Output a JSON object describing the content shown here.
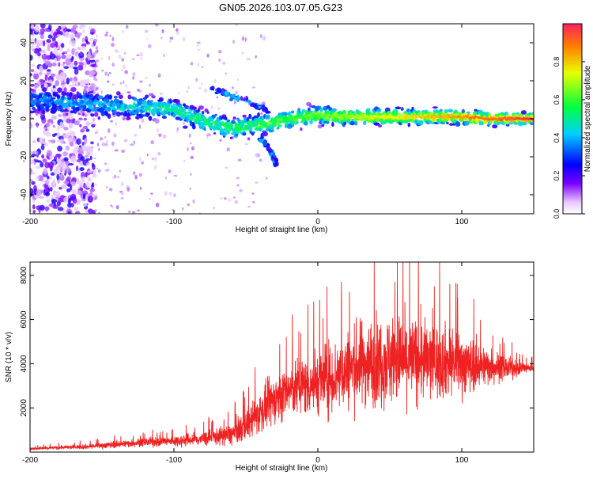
{
  "title": "GN05.2026.103.07.05.G23",
  "colors": {
    "snr_line": "#ee2222",
    "colormap": [
      "#ffffff",
      "#e8c8ff",
      "#7a00ff",
      "#0000ff",
      "#00d0ff",
      "#00ff40",
      "#e8ff00",
      "#ff2060"
    ]
  },
  "chart_data": [
    {
      "type": "heatmap",
      "title": "GN05.2026.103.07.05.G23",
      "xlabel": "Height of straight line (km)",
      "ylabel": "Frequency (Hz)",
      "xlim": [
        -200,
        150
      ],
      "ylim": [
        -50,
        50
      ],
      "x_ticks": [
        -200,
        -100,
        0,
        100
      ],
      "y_ticks": [
        -40,
        -20,
        0,
        20,
        40
      ],
      "colorbar": {
        "label": "Normalized spectral amplitude",
        "range": [
          0,
          1
        ],
        "ticks": [
          0.0,
          0.2,
          0.4,
          0.6,
          0.8
        ]
      },
      "ridge": {
        "description": "dominant frequency track",
        "points": [
          {
            "x": -200,
            "y": 10
          },
          {
            "x": -180,
            "y": 9
          },
          {
            "x": -160,
            "y": 8
          },
          {
            "x": -140,
            "y": 7
          },
          {
            "x": -120,
            "y": 6
          },
          {
            "x": -100,
            "y": 5
          },
          {
            "x": -80,
            "y": -1
          },
          {
            "x": -60,
            "y": -5
          },
          {
            "x": -40,
            "y": -3
          },
          {
            "x": -20,
            "y": 0
          },
          {
            "x": 0,
            "y": 2
          },
          {
            "x": 20,
            "y": 1
          },
          {
            "x": 40,
            "y": 1
          },
          {
            "x": 60,
            "y": 1
          },
          {
            "x": 80,
            "y": 1
          },
          {
            "x": 100,
            "y": 1
          },
          {
            "x": 120,
            "y": 0
          },
          {
            "x": 150,
            "y": 0
          }
        ]
      },
      "secondary_branches": [
        [
          {
            "x": -75,
            "y": 16
          },
          {
            "x": -60,
            "y": 12
          },
          {
            "x": -45,
            "y": 8
          },
          {
            "x": -35,
            "y": 5
          }
        ],
        [
          {
            "x": -40,
            "y": -10
          },
          {
            "x": -33,
            "y": -17
          },
          {
            "x": -28,
            "y": -24
          }
        ]
      ],
      "noise_region": {
        "x_start": -200,
        "x_end": -155,
        "y_range": [
          -50,
          50
        ]
      }
    },
    {
      "type": "line",
      "xlabel": "Height of straight line (km)",
      "ylabel": "SNR (10 * v/v)",
      "xlim": [
        -200,
        150
      ],
      "ylim": [
        0,
        8600
      ],
      "x_ticks": [
        -200,
        -100,
        0,
        100
      ],
      "y_ticks": [
        2000,
        4000,
        6000,
        8000
      ],
      "envelope": {
        "x": [
          -200,
          -180,
          -160,
          -140,
          -120,
          -100,
          -80,
          -70,
          -60,
          -50,
          -40,
          -30,
          -20,
          -10,
          0,
          10,
          20,
          30,
          40,
          50,
          60,
          70,
          80,
          90,
          100,
          110,
          120,
          130,
          140,
          150
        ],
        "mean": [
          150,
          200,
          250,
          350,
          450,
          500,
          600,
          700,
          800,
          1200,
          1800,
          2400,
          2800,
          3000,
          3200,
          3400,
          3700,
          4000,
          4100,
          4200,
          4200,
          4200,
          4100,
          4100,
          4000,
          3900,
          3900,
          3800,
          3800,
          3800
        ],
        "spread": [
          120,
          150,
          200,
          300,
          350,
          450,
          600,
          700,
          900,
          1300,
          1700,
          2000,
          2200,
          2500,
          2800,
          3000,
          3200,
          3500,
          3600,
          3700,
          3600,
          3400,
          3200,
          3000,
          2600,
          2000,
          1500,
          1000,
          600,
          400
        ]
      }
    }
  ]
}
